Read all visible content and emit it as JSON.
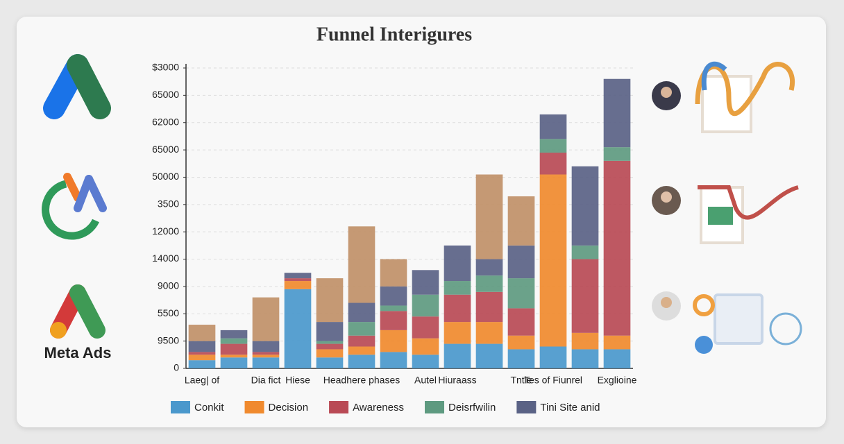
{
  "chart_data": {
    "type": "stacked-bar",
    "title": "Funnel  Interigures",
    "brand": "Meta Ads",
    "categories": [
      "Laeg| of",
      null,
      "Dia fict",
      "Hiese",
      null,
      "Headhere phases",
      null,
      "Autel",
      "Hiuraass",
      null,
      "Tntle",
      "Tes of Fiunrel",
      null,
      "Exglioine"
    ],
    "series": [
      {
        "name": "Conkit",
        "color": "#4a98cc",
        "values": [
          0.3,
          0.4,
          0.4,
          2.9,
          0.4,
          0.5,
          0.6,
          0.5,
          0.9,
          0.9,
          0.7,
          0.8,
          0.7,
          0.7
        ]
      },
      {
        "name": "Decision",
        "color": "#f08a2e",
        "values": [
          0.2,
          0.1,
          0.1,
          0.3,
          0.3,
          0.3,
          0.8,
          0.6,
          0.8,
          0.8,
          0.5,
          6.3,
          0.6,
          0.5
        ]
      },
      {
        "name": "Awareness",
        "color": "#b94a55",
        "values": [
          0.1,
          0.4,
          0.1,
          0.1,
          0.2,
          0.4,
          0.7,
          0.8,
          1.0,
          1.1,
          1.0,
          0.8,
          2.7,
          6.4
        ]
      },
      {
        "name": "Deisrfwilin",
        "color": "#5e9a80",
        "values": [
          0,
          0.2,
          0,
          0,
          0.1,
          0.5,
          0.2,
          0.8,
          0.5,
          0.6,
          1.1,
          0.5,
          0.5,
          0.5
        ]
      },
      {
        "name": "Tini Site anid",
        "color": "#5a6285",
        "values": [
          0.4,
          0.3,
          0.4,
          0.2,
          0.7,
          0.7,
          0.7,
          0.9,
          1.3,
          0.6,
          1.2,
          0.9,
          2.9,
          2.5
        ]
      },
      {
        "name": null,
        "color": "#c09068",
        "values": [
          0.6,
          0,
          1.6,
          0,
          1.6,
          2.8,
          1.0,
          0,
          0,
          3.1,
          1.8,
          0,
          0,
          0
        ]
      }
    ],
    "ylim": [
      0,
      11
    ],
    "yticks": [
      {
        "value": 0,
        "label": "0"
      },
      {
        "value": 1,
        "label": "9500"
      },
      {
        "value": 2,
        "label": "5500"
      },
      {
        "value": 3,
        "label": "9000"
      },
      {
        "value": 4,
        "label": "14000"
      },
      {
        "value": 5,
        "label": "12000"
      },
      {
        "value": 6,
        "label": "3500"
      },
      {
        "value": 7,
        "label": "50000"
      },
      {
        "value": 8,
        "label": "65000"
      },
      {
        "value": 9,
        "label": "62000"
      },
      {
        "value": 10,
        "label": "65000"
      },
      {
        "value": 11,
        "label": "$3000"
      }
    ],
    "grid": true
  }
}
